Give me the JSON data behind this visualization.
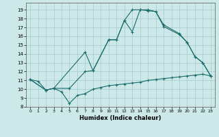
{
  "xlabel": "Humidex (Indice chaleur)",
  "xlim": [
    -0.5,
    23.5
  ],
  "ylim": [
    8,
    19.8
  ],
  "xticks": [
    0,
    1,
    2,
    3,
    4,
    5,
    6,
    7,
    8,
    9,
    10,
    11,
    12,
    13,
    14,
    15,
    16,
    17,
    18,
    19,
    20,
    21,
    22,
    23
  ],
  "yticks": [
    8,
    9,
    10,
    11,
    12,
    13,
    14,
    15,
    16,
    17,
    18,
    19
  ],
  "bg_color": "#cce8e8",
  "grid_color": "#aacece",
  "line_color": "#1a6b6b",
  "line1_x": [
    0,
    1,
    2,
    3,
    4,
    5,
    6,
    7,
    8,
    9,
    10,
    11,
    12,
    13,
    14,
    15,
    16,
    17,
    18,
    19,
    20,
    21,
    22,
    23
  ],
  "line1_y": [
    11.1,
    10.9,
    9.9,
    10.1,
    9.7,
    8.4,
    9.3,
    9.5,
    10.0,
    10.2,
    10.4,
    10.5,
    10.6,
    10.7,
    10.8,
    11.0,
    11.1,
    11.2,
    11.3,
    11.4,
    11.5,
    11.6,
    11.7,
    11.5
  ],
  "line2_x": [
    0,
    2,
    3,
    5,
    7,
    8,
    10,
    11,
    12,
    13,
    14,
    15,
    16,
    17,
    19,
    20,
    21,
    22,
    23
  ],
  "line2_y": [
    11.1,
    9.9,
    10.1,
    10.1,
    12.0,
    12.1,
    15.6,
    15.6,
    17.8,
    16.5,
    19.0,
    19.0,
    18.8,
    17.3,
    16.3,
    15.3,
    13.7,
    13.0,
    11.5
  ],
  "line3_x": [
    0,
    2,
    3,
    7,
    8,
    10,
    11,
    12,
    13,
    14,
    15,
    16,
    17,
    19,
    20,
    21,
    22,
    23
  ],
  "line3_y": [
    11.1,
    9.9,
    10.1,
    14.2,
    12.1,
    15.6,
    15.6,
    17.8,
    19.0,
    19.0,
    18.9,
    18.8,
    17.1,
    16.2,
    15.3,
    13.7,
    13.0,
    11.5
  ]
}
